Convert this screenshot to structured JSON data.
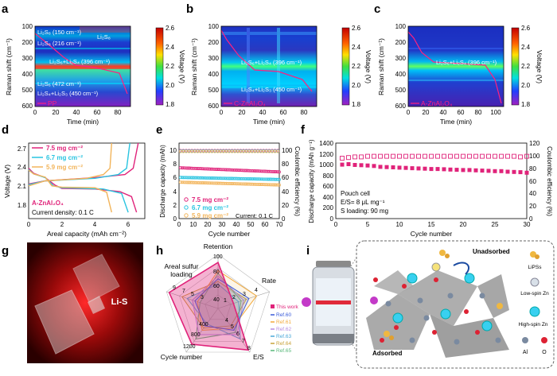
{
  "panels": {
    "a": {
      "letter": "a",
      "xlabel": "Time (min)",
      "ylabel": "Raman shift (cm⁻¹)",
      "cblabel": "Voltage (V)",
      "xticks": [
        "0",
        "20",
        "40",
        "60",
        "80"
      ],
      "yticks": [
        "100",
        "200",
        "300",
        "400",
        "500",
        "600"
      ],
      "cbticks": [
        "2.6",
        "2.4",
        "2.2",
        "2.0",
        "1.8"
      ],
      "legend": "PP",
      "annotations": [
        "Li₂S₈ (150 cm⁻¹)",
        "Li₂S₈ (216 cm⁻¹)",
        "Li₂S₈",
        "Li₂S₆+Li₂S₄ (396 cm⁻¹)",
        "Li₂S₆ (472 cm⁻¹)",
        "Li₂S₄+Li₂S₃ (450 cm⁻¹)"
      ]
    },
    "b": {
      "letter": "b",
      "xlabel": "Time (min)",
      "ylabel": "Raman shift (cm⁻¹)",
      "cblabel": "Voltage (V)",
      "xticks": [
        "0",
        "20",
        "40",
        "60",
        "80"
      ],
      "yticks": [
        "100",
        "200",
        "300",
        "400",
        "500",
        "600"
      ],
      "cbticks": [
        "2.6",
        "2.4",
        "2.2",
        "2.0",
        "1.8"
      ],
      "legend": "C-ZnAl₂O₄",
      "annotations": [
        "Li₂S₆+Li₂S₄ (396 cm⁻¹)",
        "Li₂S₄+Li₂S₃ (450 cm⁻¹)"
      ]
    },
    "c": {
      "letter": "c",
      "xlabel": "Time (min)",
      "ylabel": "Raman shift (cm⁻¹)",
      "cblabel": "Voltage (V)",
      "xticks": [
        "0",
        "20",
        "40",
        "60",
        "80",
        "100"
      ],
      "yticks": [
        "100",
        "200",
        "300",
        "400",
        "500",
        "600"
      ],
      "cbticks": [
        "2.6",
        "2.4",
        "2.2",
        "2.0",
        "1.8"
      ],
      "legend": "A-ZnAl₂O₄",
      "annotations": [
        "Li₂S₆+Li₂S₄ (396 cm⁻¹)"
      ]
    },
    "d": {
      "letter": "d",
      "xlabel": "Areal capacity (mAh cm⁻²)",
      "ylabel": "Voltage (V)",
      "xticks": [
        "0",
        "2",
        "4",
        "6"
      ],
      "yticks": [
        "1.8",
        "2.1",
        "2.4",
        "2.7"
      ],
      "legend": [
        "7.5 mg cm⁻²",
        "6.7 mg cm⁻²",
        "5.9 mg cm⁻²"
      ],
      "note1": "A-ZnAl₂O₄",
      "note2": "Current density: 0.1 C"
    },
    "e": {
      "letter": "e",
      "xlabel": "Cycle number",
      "ylabel": "Discharge capacity (mAh)",
      "y2label": "Coulombic efficiency (%)",
      "xticks": [
        "0",
        "10",
        "20",
        "30",
        "40",
        "50",
        "60",
        "70"
      ],
      "yticks": [
        "0",
        "2",
        "4",
        "6",
        "8",
        "10"
      ],
      "y2ticks": [
        "0",
        "20",
        "40",
        "60",
        "80",
        "100"
      ],
      "legend": [
        "7.5 mg cm⁻²",
        "6.7 mg cm⁻²",
        "5.9 mg cm⁻²"
      ],
      "note": "Current: 0.1 C"
    },
    "f": {
      "letter": "f",
      "xlabel": "Cycle number",
      "ylabel": "Discharge capacity (mAh g⁻¹)",
      "y2label": "Coulombic efficiency (%)",
      "xticks": [
        "0",
        "5",
        "10",
        "15",
        "20",
        "25",
        "30"
      ],
      "yticks": [
        "0",
        "200",
        "400",
        "600",
        "800",
        "1000",
        "1200",
        "1400"
      ],
      "y2ticks": [
        "0",
        "20",
        "40",
        "60",
        "80",
        "100",
        "120"
      ],
      "notes": [
        "Pouch cell",
        "E/S= 8  μL mg⁻¹",
        "S loading: 90 mg"
      ]
    },
    "g": {
      "letter": "g",
      "label": "Li-S"
    },
    "h": {
      "letter": "h",
      "axes": [
        "Retention",
        "Rate",
        "E/S",
        "Cycle number",
        "Areal sulfur loading"
      ],
      "ticks_retention": [
        "100",
        "80",
        "60",
        "40"
      ],
      "ticks_rate": [
        "4",
        "3",
        "2",
        "1"
      ],
      "ticks_es": [
        "4",
        "5",
        "6",
        "7",
        "8"
      ],
      "ticks_cycle": [
        "400",
        "800",
        "1200"
      ],
      "ticks_loading": [
        "3",
        "5",
        "7",
        "9"
      ],
      "legend": [
        "This work",
        "Ref.60",
        "Ref.61",
        "Ref.62",
        "Ref.63",
        "Ref.64",
        "Ref.65"
      ]
    },
    "i": {
      "letter": "i",
      "labels": [
        "Unadsorbed",
        "Adsorbed",
        "LiPSs",
        "Low-spin Zn",
        "High-spin Zn",
        "Al",
        "O"
      ]
    }
  },
  "colors": {
    "pink": "#e0237a",
    "cyan": "#29c4e0",
    "orange": "#f2b45a",
    "ref60": "#3a5bd9",
    "ref61": "#f2a93a",
    "ref62": "#b58be0",
    "ref63": "#4aa8d8",
    "ref64": "#c8a23a",
    "ref65": "#58b87a"
  },
  "chart_data": [
    {
      "type": "line",
      "panel": "d",
      "xlabel": "Areal capacity (mAh cm⁻²)",
      "ylabel": "Voltage (V)",
      "xlim": [
        0,
        7
      ],
      "ylim": [
        1.6,
        2.8
      ],
      "series": [
        {
          "name": "7.5 mg cm⁻²",
          "discharge": [
            [
              0,
              2.4
            ],
            [
              0.3,
              2.32
            ],
            [
              1,
              2.25
            ],
            [
              1.6,
              2.13
            ],
            [
              2,
              2.08
            ],
            [
              4,
              2.07
            ],
            [
              5.5,
              2.03
            ],
            [
              6.2,
              1.95
            ],
            [
              6.5,
              1.7
            ]
          ],
          "charge": [
            [
              0,
              2.15
            ],
            [
              1,
              2.2
            ],
            [
              4,
              2.25
            ],
            [
              5.8,
              2.3
            ],
            [
              6.3,
              2.4
            ],
            [
              6.6,
              2.8
            ]
          ]
        },
        {
          "name": "6.7 mg cm⁻²",
          "discharge": [
            [
              0,
              2.38
            ],
            [
              0.3,
              2.31
            ],
            [
              1,
              2.25
            ],
            [
              1.5,
              2.12
            ],
            [
              2,
              2.09
            ],
            [
              4.5,
              2.07
            ],
            [
              5.6,
              2.0
            ],
            [
              6,
              1.7
            ]
          ],
          "charge": [
            [
              0,
              2.14
            ],
            [
              1,
              2.2
            ],
            [
              4,
              2.24
            ],
            [
              5.4,
              2.3
            ],
            [
              5.9,
              2.4
            ],
            [
              6.1,
              2.8
            ]
          ]
        },
        {
          "name": "5.9 mg cm⁻²",
          "discharge": [
            [
              0,
              2.37
            ],
            [
              0.3,
              2.31
            ],
            [
              1,
              2.26
            ],
            [
              1.4,
              2.12
            ],
            [
              2,
              2.1
            ],
            [
              4,
              2.09
            ],
            [
              4.7,
              2.02
            ],
            [
              5.0,
              1.7
            ]
          ],
          "charge": [
            [
              0,
              2.12
            ],
            [
              1,
              2.2
            ],
            [
              3.5,
              2.24
            ],
            [
              4.5,
              2.3
            ],
            [
              4.9,
              2.4
            ],
            [
              5.0,
              2.8
            ]
          ]
        }
      ]
    },
    {
      "type": "scatter",
      "panel": "e",
      "xlabel": "Cycle number",
      "ylabel": "Discharge capacity (mAh)",
      "y2label": "Coulombic efficiency (%)",
      "xlim": [
        0,
        70
      ],
      "ylim": [
        0,
        11
      ],
      "y2lim": [
        0,
        110
      ],
      "series": [
        {
          "name": "7.5 mg cm⁻²",
          "capacity_start": 7.4,
          "capacity_end": 6.8,
          "ce": 99
        },
        {
          "name": "6.7 mg cm⁻²",
          "capacity_start": 6.0,
          "capacity_end": 5.7,
          "ce": 99
        },
        {
          "name": "5.9 mg cm⁻²",
          "capacity_start": 5.3,
          "capacity_end": 4.9,
          "ce": 99
        }
      ]
    },
    {
      "type": "scatter",
      "panel": "f",
      "xlabel": "Cycle number",
      "ylabel": "Discharge capacity (mAh g⁻¹)",
      "y2label": "Coulombic efficiency (%)",
      "xlim": [
        0,
        30
      ],
      "ylim": [
        0,
        1400
      ],
      "y2lim": [
        0,
        120
      ],
      "series": [
        {
          "name": "capacity",
          "values": [
            1000,
            1010,
            995,
            990,
            985,
            975,
            960,
            955,
            950,
            945,
            940,
            935,
            930,
            925,
            920,
            920,
            915,
            910,
            905,
            900,
            900,
            895,
            890,
            885,
            880,
            880,
            870,
            865,
            860,
            850
          ]
        },
        {
          "name": "coulombic efficiency",
          "values": [
            96,
            97,
            98,
            98,
            99,
            99,
            99,
            99,
            99,
            99,
            99,
            99,
            99,
            99,
            99,
            99,
            99,
            99,
            99,
            99,
            99,
            99,
            99,
            99,
            99,
            99,
            99,
            99,
            98,
            99
          ]
        }
      ]
    },
    {
      "type": "radar",
      "panel": "h",
      "axes": [
        "Retention",
        "Rate",
        "E/S",
        "Cycle number",
        "Areal sulfur loading"
      ],
      "series": [
        {
          "name": "This work",
          "values": [
            0.85,
            0.3,
            0.95,
            0.82,
            0.95
          ]
        },
        {
          "name": "Ref.60",
          "values": [
            0.55,
            0.6,
            0.5,
            0.4,
            0.45
          ]
        },
        {
          "name": "Ref.61",
          "values": [
            0.7,
            0.75,
            0.45,
            0.5,
            0.4
          ]
        },
        {
          "name": "Ref.62",
          "values": [
            0.6,
            0.5,
            0.6,
            0.6,
            0.5
          ]
        },
        {
          "name": "Ref.63",
          "values": [
            0.45,
            0.4,
            0.7,
            0.35,
            0.6
          ]
        },
        {
          "name": "Ref.64",
          "values": [
            0.5,
            0.55,
            0.4,
            0.45,
            0.7
          ]
        },
        {
          "name": "Ref.65",
          "values": [
            0.65,
            0.45,
            0.55,
            0.7,
            0.35
          ]
        }
      ]
    }
  ]
}
